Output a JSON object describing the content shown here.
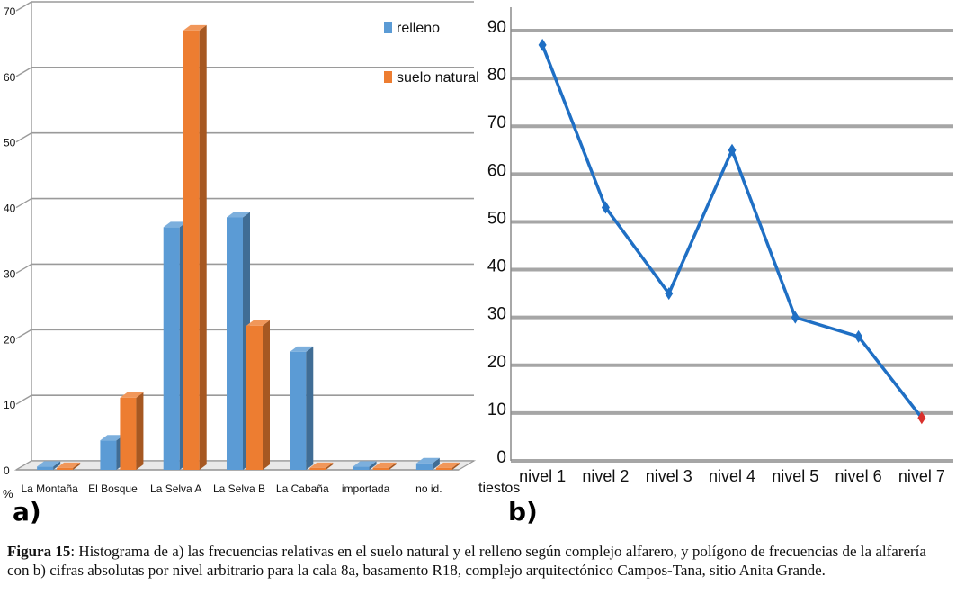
{
  "chart_data": [
    {
      "type": "bar",
      "panel_label": "a)",
      "ylabel": "%",
      "ylim": [
        0,
        70
      ],
      "yticks": [
        0,
        10,
        20,
        30,
        40,
        50,
        60,
        70
      ],
      "grid": true,
      "legend_position": "top-right",
      "categories": [
        "La Montaña",
        "El Bosque",
        "La Selva A",
        "La Selva B",
        "La Cabaña",
        "importada",
        "no id."
      ],
      "series": [
        {
          "name": "relleno",
          "color": "#5b9bd5",
          "values": [
            0.5,
            4.5,
            37,
            38.5,
            18,
            0.5,
            1
          ]
        },
        {
          "name": "suelo natural",
          "color": "#ed7d31",
          "values": [
            0.3,
            11,
            67,
            22,
            0.3,
            0.3,
            0.3
          ]
        }
      ]
    },
    {
      "type": "line",
      "panel_label": "b)",
      "ylabel": "tiestos",
      "ylim": [
        0,
        90
      ],
      "yticks": [
        0,
        10,
        20,
        30,
        40,
        50,
        60,
        70,
        80,
        90
      ],
      "grid": true,
      "color": "#1f6fc4",
      "x": [
        "nivel 1",
        "nivel 2",
        "nivel 3",
        "nivel 4",
        "nivel 5",
        "nivel 6",
        "nivel 7"
      ],
      "values": [
        87,
        53,
        35,
        65,
        30,
        26,
        9
      ]
    }
  ],
  "caption": {
    "label": "Figura 15",
    "text": ": Histograma de a) las frecuencias relativas en el suelo natural y el relleno según complejo alfarero, y polígono de frecuencias de la alfarería con b) cifras absolutas por nivel arbitrario para la cala 8a, basamento R18, complejo arquitectónico Campos-Tana, sitio Anita Grande."
  }
}
